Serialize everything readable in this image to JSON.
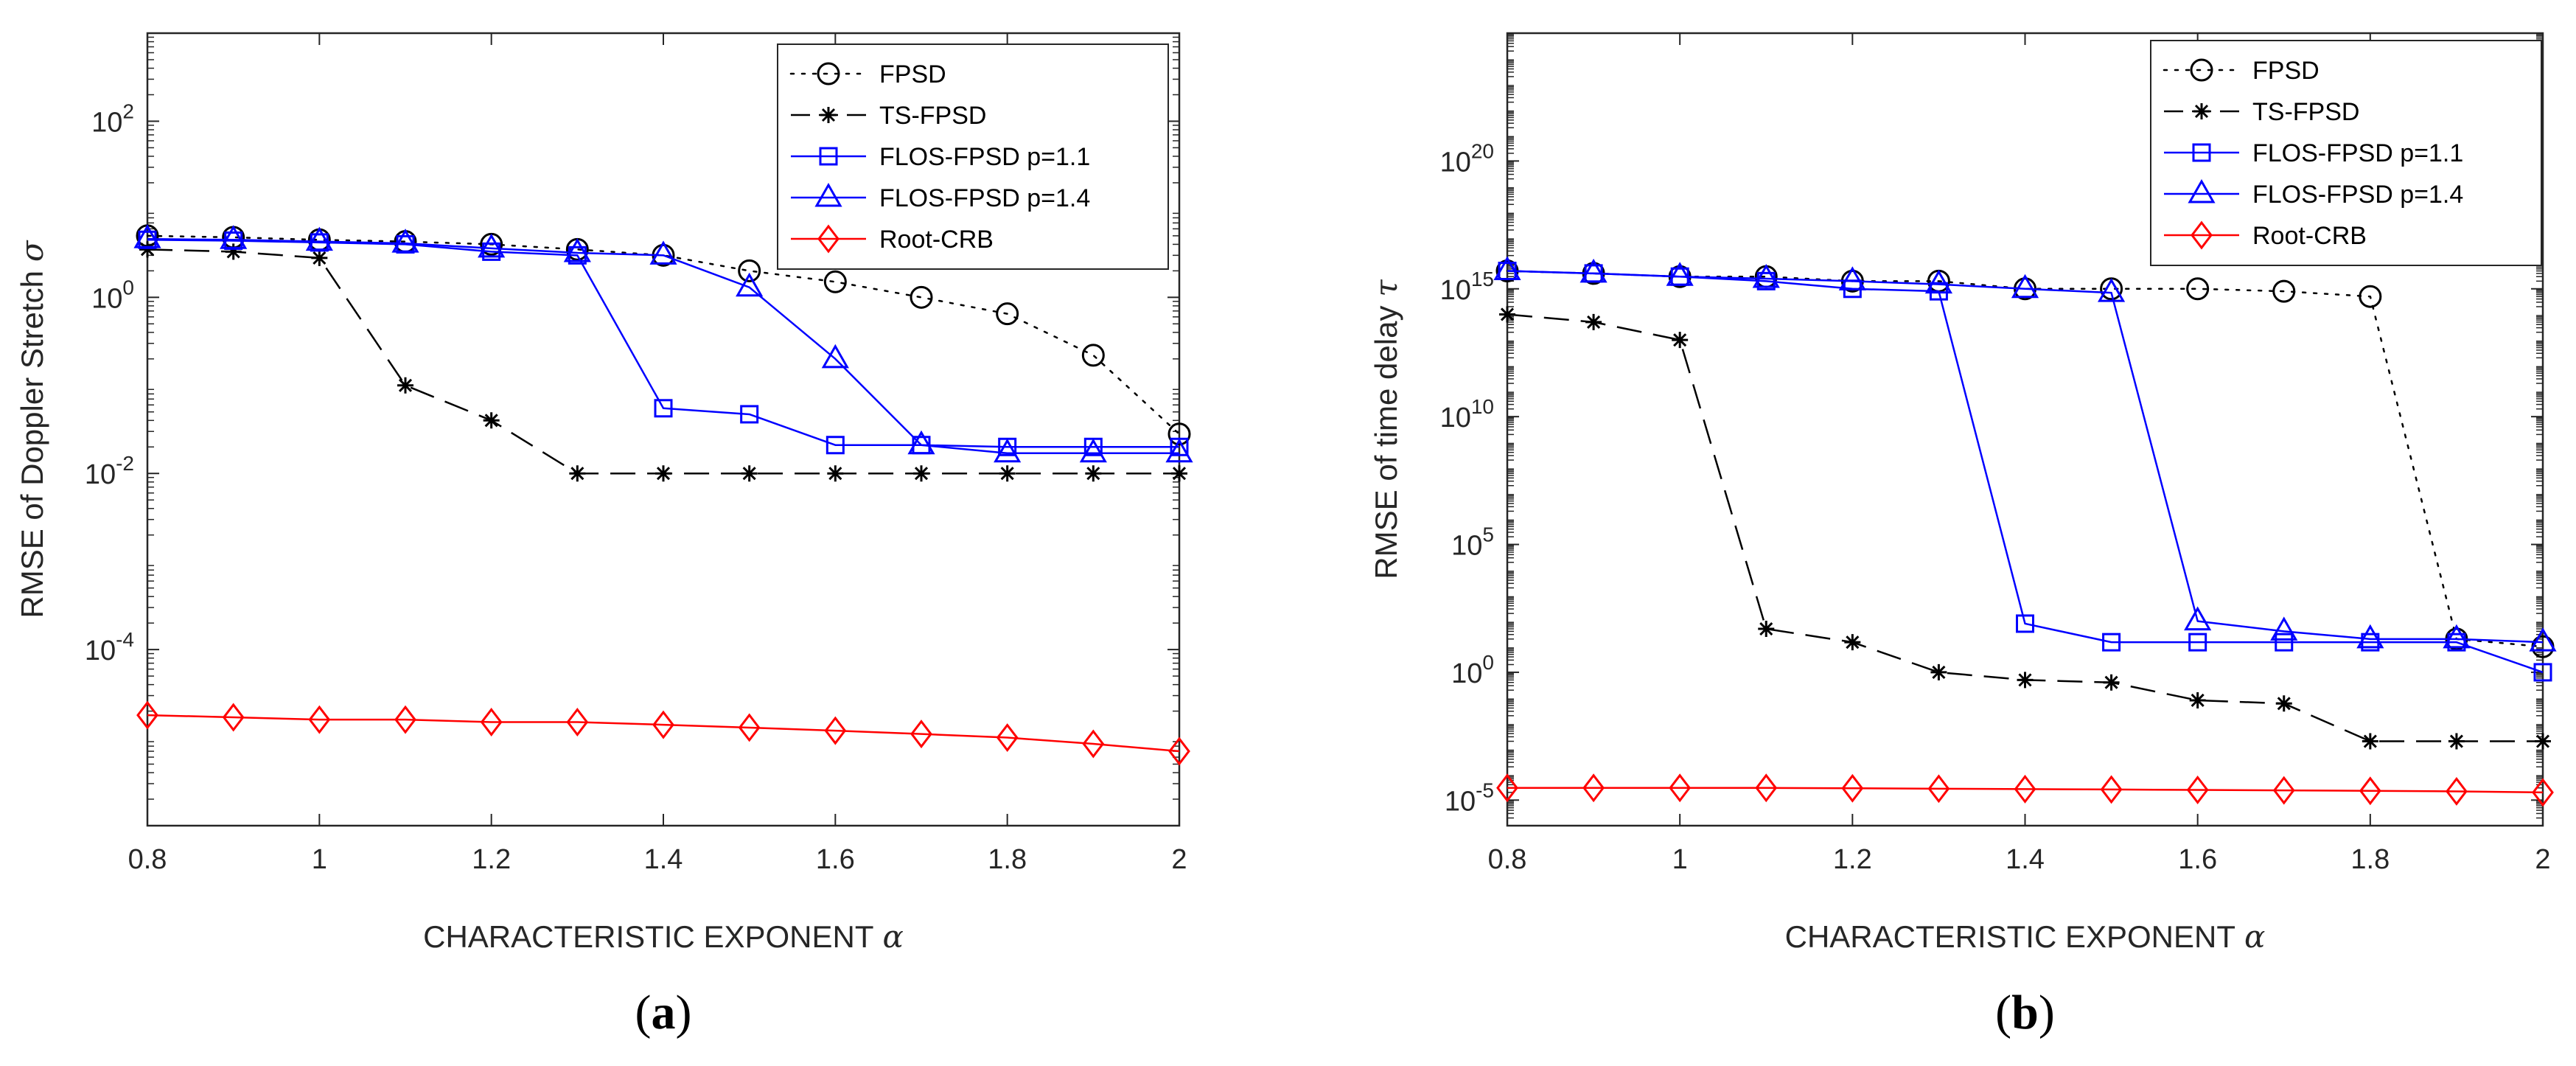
{
  "chart_data": [
    {
      "type": "line",
      "panel_label": "(a)",
      "panel_letter": "a",
      "xlabel": "CHARACTERISTIC EXPONENT",
      "xlabel_symbol": "α",
      "ylabel": "RMSE of Doppler Stretch",
      "ylabel_symbol": "σ",
      "yscale": "log",
      "xlim": [
        0.8,
        2
      ],
      "ylim": [
        1e-06,
        1000
      ],
      "x_ticks": [
        0.8,
        1,
        1.2,
        1.4,
        1.6,
        1.8,
        2
      ],
      "x_tick_labels": [
        "0.8",
        "1",
        "1.2",
        "1.4",
        "1.6",
        "1.8",
        "2"
      ],
      "y_ticks": [
        {
          "value": 0.0001,
          "base": "10",
          "exp": "-4"
        },
        {
          "value": 0.01,
          "base": "10",
          "exp": "-2"
        },
        {
          "value": 1,
          "base": "10",
          "exp": "0"
        },
        {
          "value": 100,
          "base": "10",
          "exp": "2"
        }
      ],
      "legend_position": "top-right",
      "x": [
        0.8,
        0.9,
        1.0,
        1.1,
        1.2,
        1.3,
        1.4,
        1.5,
        1.6,
        1.7,
        1.8,
        1.9,
        2.0
      ],
      "series": [
        {
          "name": "FPSD",
          "color": "#000000",
          "dash": "dotted",
          "marker": "circle",
          "values": [
            5.0,
            4.8,
            4.5,
            4.3,
            4.0,
            3.5,
            3.0,
            2.0,
            1.5,
            1.0,
            0.65,
            0.22,
            0.028
          ]
        },
        {
          "name": "TS-FPSD",
          "color": "#000000",
          "dash": "dashed",
          "marker": "star",
          "values": [
            3.5,
            3.3,
            2.8,
            0.1,
            0.04,
            0.01,
            0.01,
            0.01,
            0.01,
            0.01,
            0.01,
            0.01,
            0.01
          ]
        },
        {
          "name": "FLOS-FPSD p=1.1",
          "color": "#0000ff",
          "dash": "solid",
          "marker": "square",
          "values": [
            4.5,
            4.4,
            4.2,
            4.0,
            3.3,
            3.0,
            0.055,
            0.047,
            0.021,
            0.021,
            0.02,
            0.02,
            0.02
          ]
        },
        {
          "name": "FLOS-FPSD p=1.4",
          "color": "#0000ff",
          "dash": "solid",
          "marker": "triangle",
          "values": [
            4.6,
            4.5,
            4.3,
            4.1,
            3.6,
            3.2,
            3.0,
            1.3,
            0.2,
            0.021,
            0.017,
            0.017,
            0.017
          ]
        },
        {
          "name": "Root-CRB",
          "color": "#ff0000",
          "dash": "solid",
          "marker": "diamond",
          "values": [
            1.8e-05,
            1.7e-05,
            1.6e-05,
            1.6e-05,
            1.5e-05,
            1.5e-05,
            1.4e-05,
            1.3e-05,
            1.2e-05,
            1.1e-05,
            1e-05,
            8.5e-06,
            7e-06
          ]
        }
      ]
    },
    {
      "type": "line",
      "panel_label": "(b)",
      "panel_letter": "b",
      "xlabel": "CHARACTERISTIC EXPONENT",
      "xlabel_symbol": "α",
      "ylabel": "RMSE of time delay",
      "ylabel_symbol": "τ",
      "yscale": "log",
      "xlim": [
        0.8,
        2
      ],
      "ylim": [
        1e-06,
        1e+25
      ],
      "x_ticks": [
        0.8,
        1,
        1.2,
        1.4,
        1.6,
        1.8,
        2
      ],
      "x_tick_labels": [
        "0.8",
        "1",
        "1.2",
        "1.4",
        "1.6",
        "1.8",
        "2"
      ],
      "y_ticks": [
        {
          "value": 1e-05,
          "base": "10",
          "exp": "-5"
        },
        {
          "value": 1,
          "base": "10",
          "exp": "0"
        },
        {
          "value": 100000,
          "base": "10",
          "exp": "5"
        },
        {
          "value": 10000000000.0,
          "base": "10",
          "exp": "10"
        },
        {
          "value": 1000000000000000.0,
          "base": "10",
          "exp": "15"
        },
        {
          "value": 1e+20,
          "base": "10",
          "exp": "20"
        }
      ],
      "legend_position": "top-right",
      "x": [
        0.8,
        0.9,
        1.0,
        1.1,
        1.2,
        1.3,
        1.4,
        1.5,
        1.6,
        1.7,
        1.8,
        1.9,
        2.0
      ],
      "series": [
        {
          "name": "FPSD",
          "color": "#000000",
          "dash": "dotted",
          "marker": "circle",
          "values": [
            5000000000000000.0,
            4000000000000000.0,
            3000000000000000.0,
            3000000000000000.0,
            2000000000000000.0,
            2000000000000000.0,
            1000000000000000.0,
            1000000000000000.0,
            1000000000000000.0,
            800000000000000.0,
            500000000000000.0,
            20,
            10
          ]
        },
        {
          "name": "TS-FPSD",
          "color": "#000000",
          "dash": "dashed",
          "marker": "star",
          "values": [
            100000000000000.0,
            50000000000000.0,
            10000000000000.0,
            50,
            15,
            1,
            0.5,
            0.4,
            0.08,
            0.06,
            0.002,
            0.002,
            0.002
          ]
        },
        {
          "name": "FLOS-FPSD p=1.1",
          "color": "#0000ff",
          "dash": "solid",
          "marker": "square",
          "values": [
            5000000000000000.0,
            4000000000000000.0,
            3000000000000000.0,
            2000000000000000.0,
            1000000000000000.0,
            800000000000000.0,
            80,
            15,
            15,
            15,
            15,
            15,
            1
          ]
        },
        {
          "name": "FLOS-FPSD p=1.4",
          "color": "#0000ff",
          "dash": "solid",
          "marker": "triangle",
          "values": [
            5000000000000000.0,
            4000000000000000.0,
            3000000000000000.0,
            2500000000000000.0,
            2000000000000000.0,
            1500000000000000.0,
            1000000000000000.0,
            700000000000000.0,
            100,
            40,
            20,
            20,
            15
          ]
        },
        {
          "name": "Root-CRB",
          "color": "#ff0000",
          "dash": "solid",
          "marker": "diamond",
          "values": [
            3e-05,
            3e-05,
            3e-05,
            3e-05,
            2.9e-05,
            2.8e-05,
            2.7e-05,
            2.6e-05,
            2.5e-05,
            2.4e-05,
            2.3e-05,
            2.2e-05,
            2e-05
          ]
        }
      ]
    }
  ]
}
